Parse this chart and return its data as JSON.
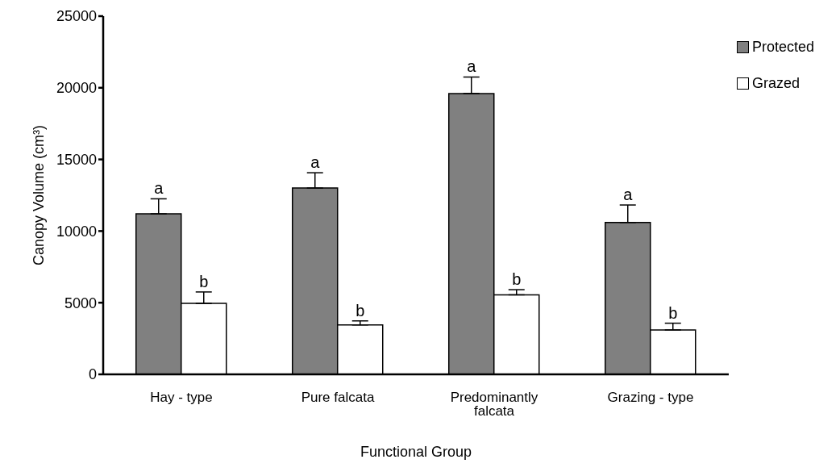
{
  "chart_data": {
    "type": "bar",
    "xlabel": "Functional Group",
    "ylabel": "Canopy Volume (cm³)",
    "categories": [
      "Hay - type",
      "Pure falcata",
      "Predominantly falcata",
      "Grazing - type"
    ],
    "series": [
      {
        "name": "Protected",
        "color": "#808080",
        "values": [
          11200,
          13000,
          19600,
          10600
        ],
        "errors": [
          1050,
          1070,
          1150,
          1220
        ]
      },
      {
        "name": "Grazed",
        "color": "#ffffff",
        "values": [
          4950,
          3450,
          5550,
          3100
        ],
        "errors": [
          800,
          280,
          360,
          470
        ]
      }
    ],
    "ylim": [
      0,
      25000
    ],
    "yticks": [
      0,
      5000,
      10000,
      15000,
      20000,
      25000
    ],
    "grid": false,
    "legend": "top right",
    "annotations": [
      "a",
      "b",
      "a",
      "b",
      "a",
      "b",
      "a",
      "b"
    ]
  }
}
